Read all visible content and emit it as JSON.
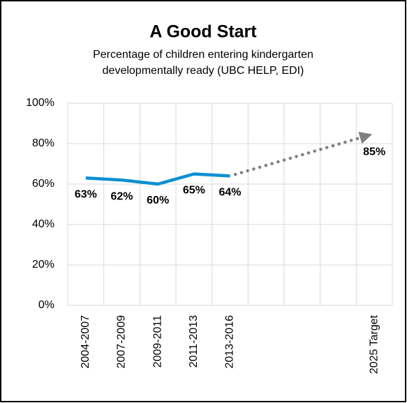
{
  "chart_data": {
    "type": "line",
    "title": "A Good Start",
    "subtitle": [
      "Percentage of children entering kindergarten",
      "developmentally ready (UBC HELP, EDI)"
    ],
    "categories": [
      "2004-2007",
      "2007-2009",
      "2009-2011",
      "2011-2013",
      "2013-2016",
      null,
      null,
      null,
      "2025 Target"
    ],
    "series": [
      {
        "color": "#0a8fd1",
        "style": "solid",
        "values": [
          63,
          62,
          60,
          65,
          64,
          null,
          null,
          null,
          null
        ],
        "value_labels": [
          "63%",
          "62%",
          "60%",
          "65%",
          "64%",
          null,
          null,
          null,
          null
        ]
      },
      {
        "color": "#808080",
        "style": "dotted-arrow",
        "values": [
          null,
          null,
          null,
          null,
          null,
          null,
          null,
          null,
          85
        ],
        "value_labels": [
          null,
          null,
          null,
          null,
          null,
          null,
          null,
          null,
          "85%"
        ]
      }
    ],
    "ylim": [
      0,
      100
    ],
    "yticks": [
      {
        "value": 0,
        "label": "0%"
      },
      {
        "value": 20,
        "label": "20%"
      },
      {
        "value": 40,
        "label": "40%"
      },
      {
        "value": 60,
        "label": "60%"
      },
      {
        "value": 80,
        "label": "80%"
      },
      {
        "value": 100,
        "label": "100%"
      }
    ],
    "grid": true
  }
}
